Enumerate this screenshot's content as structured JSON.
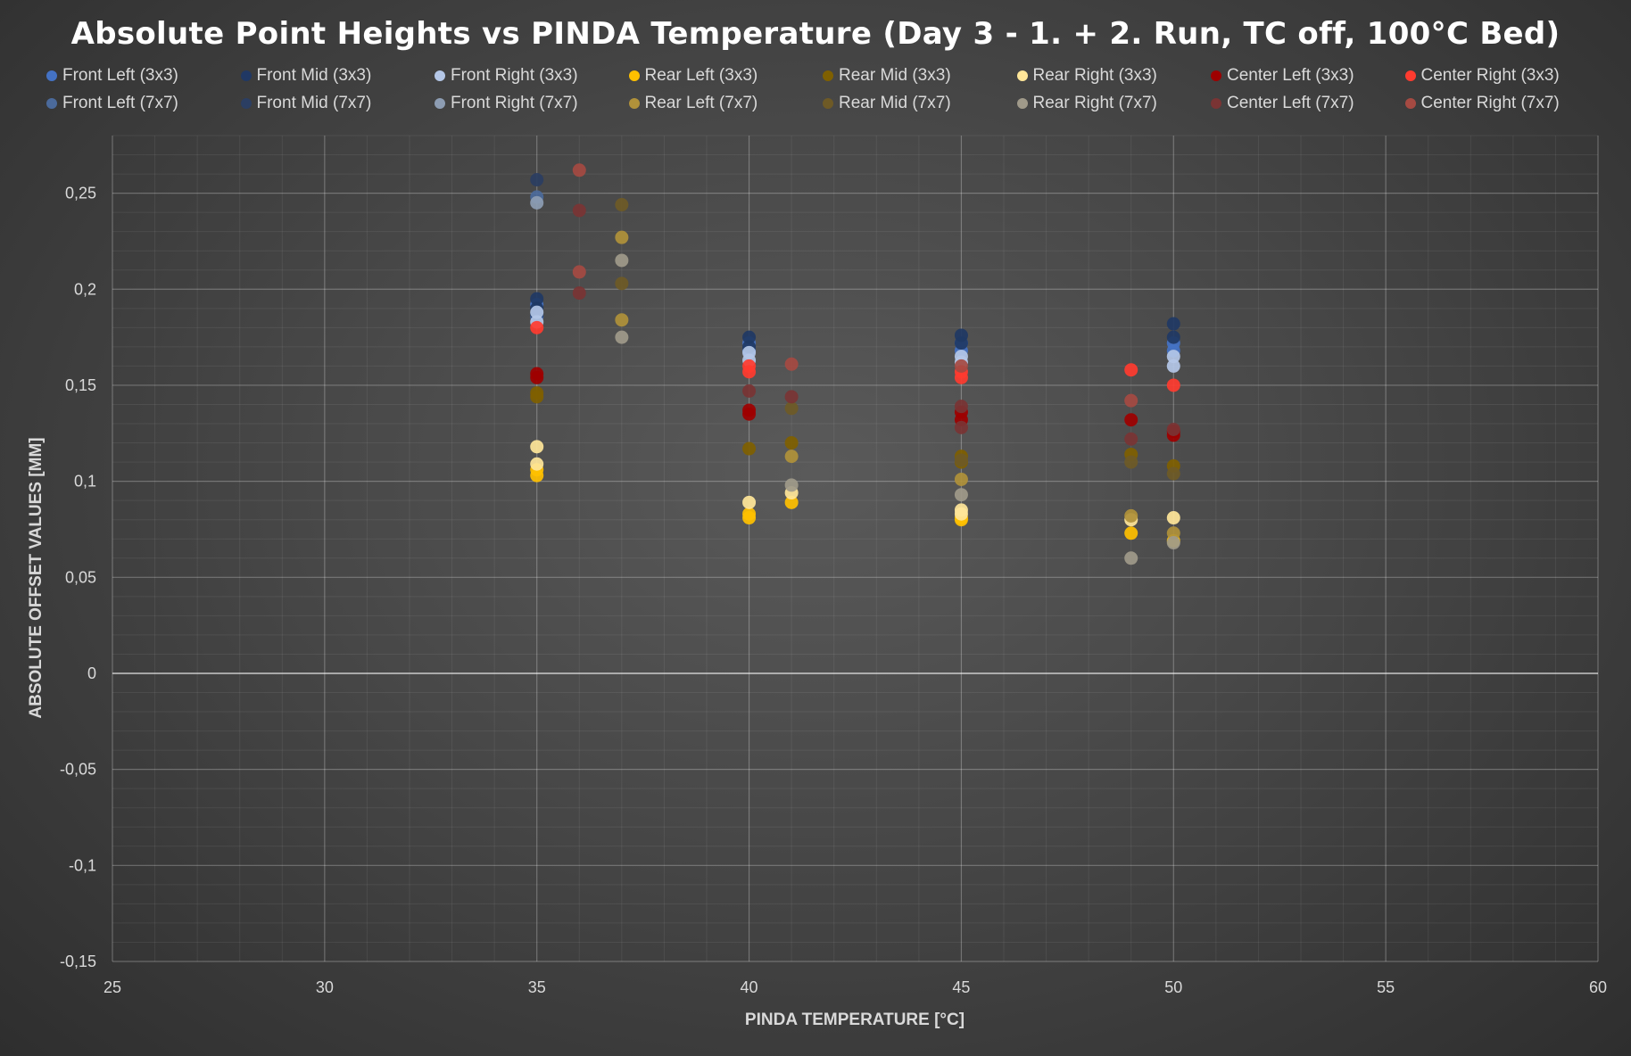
{
  "chart_data": {
    "type": "scatter",
    "title": "Absolute Point Heights vs PINDA Temperature (Day 3 - 1. + 2. Run, TC off, 100°C Bed)",
    "xlabel": "PINDA TEMPERATURE [°C]",
    "ylabel": "ABSOLUTE OFFSET VALUES [MM]",
    "xlim": [
      25,
      60
    ],
    "ylim": [
      -0.15,
      0.28
    ],
    "x_ticks": [
      25,
      30,
      35,
      40,
      45,
      50,
      55,
      60
    ],
    "x_tick_labels": [
      "25",
      "30",
      "35",
      "40",
      "45",
      "50",
      "55",
      "60"
    ],
    "y_ticks": [
      -0.15,
      -0.1,
      -0.05,
      0,
      0.05,
      0.1,
      0.15,
      0.2,
      0.25
    ],
    "y_tick_labels": [
      "-0,15",
      "-0,1",
      "-0,05",
      "0",
      "0,05",
      "0,1",
      "0,15",
      "0,2",
      "0,25"
    ],
    "grid": true,
    "legend_position": "top",
    "series": [
      {
        "name": "Front Left (3x3)",
        "color": "#4472c4",
        "x": [
          35,
          35,
          40,
          40,
          45,
          45,
          50,
          50
        ],
        "y": [
          0.192,
          0.186,
          0.172,
          0.168,
          0.172,
          0.168,
          0.172,
          0.168
        ]
      },
      {
        "name": "Front Mid (3x3)",
        "color": "#203864",
        "x": [
          35,
          35,
          35,
          40,
          40,
          45,
          45,
          50,
          50
        ],
        "y": [
          0.195,
          0.19,
          0.187,
          0.175,
          0.17,
          0.176,
          0.172,
          0.182,
          0.175
        ]
      },
      {
        "name": "Front Right (3x3)",
        "color": "#b4c7e7",
        "x": [
          35,
          35,
          40,
          40,
          45,
          45,
          50,
          50
        ],
        "y": [
          0.188,
          0.183,
          0.167,
          0.163,
          0.165,
          0.162,
          0.165,
          0.16
        ]
      },
      {
        "name": "Rear Left (3x3)",
        "color": "#ffc000",
        "x": [
          35,
          35,
          40,
          40,
          41,
          45,
          45,
          49,
          50
        ],
        "y": [
          0.106,
          0.103,
          0.083,
          0.081,
          0.089,
          0.081,
          0.08,
          0.073,
          0.069
        ]
      },
      {
        "name": "Rear Mid (3x3)",
        "color": "#7f6000",
        "x": [
          35,
          35,
          40,
          41,
          45,
          45,
          49,
          50
        ],
        "y": [
          0.146,
          0.144,
          0.117,
          0.12,
          0.11,
          0.113,
          0.114,
          0.108
        ]
      },
      {
        "name": "Rear Right (3x3)",
        "color": "#ffe699",
        "x": [
          35,
          35,
          40,
          41,
          45,
          45,
          49,
          50
        ],
        "y": [
          0.118,
          0.109,
          0.089,
          0.094,
          0.085,
          0.083,
          0.08,
          0.081
        ]
      },
      {
        "name": "Center Left (3x3)",
        "color": "#9e0000",
        "x": [
          35,
          35,
          40,
          40,
          45,
          45,
          49,
          50,
          50
        ],
        "y": [
          0.156,
          0.154,
          0.137,
          0.135,
          0.136,
          0.132,
          0.132,
          0.126,
          0.124
        ]
      },
      {
        "name": "Center Right (3x3)",
        "color": "#ff3b2f",
        "x": [
          35,
          40,
          40,
          45,
          45,
          49,
          50
        ],
        "y": [
          0.18,
          0.16,
          0.157,
          0.157,
          0.154,
          0.158,
          0.15
        ]
      },
      {
        "name": "Front Left (7x7)",
        "color": "#4b6a9b",
        "x": [
          35
        ],
        "y": [
          0.248
        ]
      },
      {
        "name": "Front Mid (7x7)",
        "color": "#2b3e62",
        "x": [
          35
        ],
        "y": [
          0.257
        ]
      },
      {
        "name": "Front Right (7x7)",
        "color": "#8d9db3",
        "x": [
          35
        ],
        "y": [
          0.245
        ]
      },
      {
        "name": "Rear Left (7x7)",
        "color": "#b0913a",
        "x": [
          37,
          37,
          41,
          45,
          49,
          50
        ],
        "y": [
          0.227,
          0.184,
          0.113,
          0.101,
          0.082,
          0.073
        ]
      },
      {
        "name": "Rear Mid (7x7)",
        "color": "#6e5a26",
        "x": [
          37,
          37,
          41,
          45,
          49,
          50
        ],
        "y": [
          0.244,
          0.203,
          0.138,
          0.111,
          0.11,
          0.104
        ]
      },
      {
        "name": "Rear Right (7x7)",
        "color": "#a09a8a",
        "x": [
          37,
          37,
          41,
          45,
          49,
          50
        ],
        "y": [
          0.215,
          0.175,
          0.098,
          0.093,
          0.06,
          0.068
        ]
      },
      {
        "name": "Center Left (7x7)",
        "color": "#7a3434",
        "x": [
          36,
          36,
          40,
          41,
          45,
          45,
          49,
          50
        ],
        "y": [
          0.241,
          0.198,
          0.147,
          0.144,
          0.139,
          0.128,
          0.122,
          0.127
        ]
      },
      {
        "name": "Center Right (7x7)",
        "color": "#a54a42",
        "x": [
          36,
          36,
          41,
          45,
          49
        ],
        "y": [
          0.262,
          0.209,
          0.161,
          0.16,
          0.142
        ]
      }
    ]
  }
}
